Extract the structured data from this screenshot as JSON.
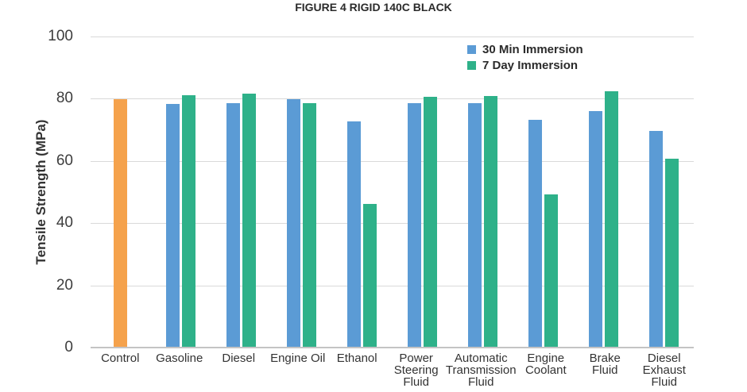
{
  "chart_data": {
    "type": "bar",
    "title": "FIGURE 4 RIGID 140C BLACK",
    "ylabel": "Tensile Strength (MPa)",
    "xlabel": "",
    "ylim": [
      0,
      100
    ],
    "yticks": [
      0,
      20,
      40,
      60,
      80,
      100
    ],
    "grid": true,
    "legend_position": "top-right",
    "categories": [
      "Control",
      "Gasoline",
      "Diesel",
      "Engine Oil",
      "Ethanol",
      "Power Steering Fluid",
      "Automatic Transmission Fluid",
      "Engine Coolant",
      "Brake Fluid",
      "Diesel Exhaust Fluid"
    ],
    "category_label_lines": [
      [
        "Control"
      ],
      [
        "Gasoline"
      ],
      [
        "Diesel"
      ],
      [
        "Engine Oil"
      ],
      [
        "Ethanol"
      ],
      [
        "Power",
        "Steering",
        "Fluid"
      ],
      [
        "Automatic",
        "Transmission",
        "Fluid"
      ],
      [
        "Engine",
        "Coolant"
      ],
      [
        "Brake",
        "Fluid"
      ],
      [
        "Diesel",
        "Exhaust",
        "Fluid"
      ]
    ],
    "control_bar": {
      "category": "Control",
      "value": 79.8,
      "color": "#F5A24C"
    },
    "series": [
      {
        "name": "30 Min Immersion",
        "color": "#5B9BD5",
        "values": [
          null,
          78.3,
          78.6,
          79.9,
          72.6,
          78.7,
          78.5,
          73.2,
          75.9,
          69.7
        ]
      },
      {
        "name": "7 Day Immersion",
        "color": "#2EB189",
        "values": [
          null,
          81.2,
          81.7,
          78.5,
          46.2,
          80.6,
          80.9,
          49.3,
          82.4,
          60.7
        ]
      }
    ]
  },
  "colors": {
    "control_orange": "#F5A24C",
    "series_blue": "#5B9BD5",
    "series_green": "#2EB189",
    "gridline": "#D9D9D9",
    "axis_line": "#C4C4C4",
    "text": "#333333"
  }
}
